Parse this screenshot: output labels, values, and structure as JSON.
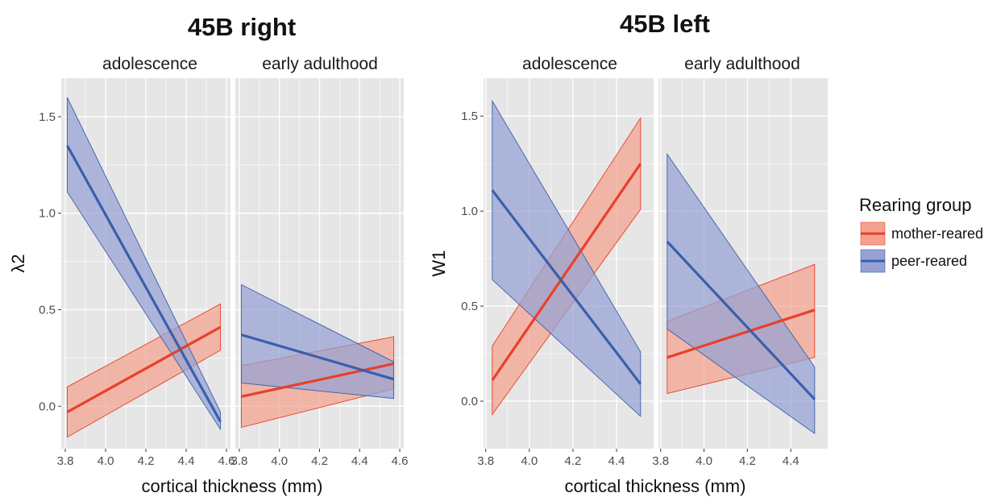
{
  "legend": {
    "title": "Rearing group",
    "items": [
      {
        "label": "mother-reared",
        "line": "#e8402c",
        "fill": "#f4a28e"
      },
      {
        "label": "peer-reared",
        "line": "#3a5fab",
        "fill": "#96a2d4"
      }
    ]
  },
  "colors": {
    "panel_bg": "#e6e6e6",
    "grid": "#ffffff",
    "mother_line": "#e8402c",
    "mother_fill": "#f4a28e",
    "peer_line": "#3a5fab",
    "peer_fill": "#96a2d4"
  },
  "chart_data": [
    {
      "type": "line",
      "title": "45B right",
      "ylabel": "λ2",
      "xlabel": "cortical thickness (mm)",
      "ylim": [
        -0.22,
        1.7
      ],
      "yticks": [
        0.0,
        0.5,
        1.0,
        1.5
      ],
      "ytick_labels": [
        "0.0",
        "0.5",
        "1.0",
        "1.5"
      ],
      "xlim": [
        3.78,
        4.62
      ],
      "xticks": [
        3.8,
        4.0,
        4.2,
        4.4,
        4.6
      ],
      "xtick_labels": [
        "3.8",
        "4.0",
        "4.2",
        "4.4",
        "4.6"
      ],
      "facets": [
        {
          "label": "adolescence",
          "series": [
            {
              "name": "mother-reared",
              "x": [
                3.81,
                4.57
              ],
              "y": [
                -0.03,
                0.41
              ],
              "lower": [
                -0.16,
                0.29
              ],
              "upper": [
                0.1,
                0.53
              ]
            },
            {
              "name": "peer-reared",
              "x": [
                3.81,
                4.57
              ],
              "y": [
                1.35,
                -0.08
              ],
              "lower": [
                1.11,
                -0.12
              ],
              "upper": [
                1.6,
                -0.03
              ]
            }
          ]
        },
        {
          "label": "early adulthood",
          "series": [
            {
              "name": "mother-reared",
              "x": [
                3.81,
                4.57
              ],
              "y": [
                0.05,
                0.22
              ],
              "lower": [
                -0.11,
                0.09
              ],
              "upper": [
                0.21,
                0.36
              ]
            },
            {
              "name": "peer-reared",
              "x": [
                3.81,
                4.57
              ],
              "y": [
                0.37,
                0.14
              ],
              "lower": [
                0.12,
                0.04
              ],
              "upper": [
                0.63,
                0.23
              ]
            }
          ]
        }
      ]
    },
    {
      "type": "line",
      "title": "45B left",
      "ylabel": "W1",
      "xlabel": "cortical thickness (mm)",
      "ylim": [
        -0.25,
        1.7
      ],
      "yticks": [
        0.0,
        0.5,
        1.0,
        1.5
      ],
      "ytick_labels": [
        "0.0",
        "0.5",
        "1.0",
        "1.5"
      ],
      "xlim": [
        3.79,
        4.57
      ],
      "xticks": [
        3.8,
        4.0,
        4.2,
        4.4
      ],
      "xtick_labels": [
        "3.8",
        "4.0",
        "4.2",
        "4.4"
      ],
      "facets": [
        {
          "label": "adolescence",
          "series": [
            {
              "name": "mother-reared",
              "x": [
                3.83,
                4.51
              ],
              "y": [
                0.11,
                1.25
              ],
              "lower": [
                -0.07,
                1.01
              ],
              "upper": [
                0.29,
                1.49
              ]
            },
            {
              "name": "peer-reared",
              "x": [
                3.83,
                4.51
              ],
              "y": [
                1.11,
                0.09
              ],
              "lower": [
                0.64,
                -0.08
              ],
              "upper": [
                1.58,
                0.26
              ]
            }
          ]
        },
        {
          "label": "early adulthood",
          "series": [
            {
              "name": "mother-reared",
              "x": [
                3.83,
                4.51
              ],
              "y": [
                0.23,
                0.48
              ],
              "lower": [
                0.04,
                0.23
              ],
              "upper": [
                0.42,
                0.72
              ]
            },
            {
              "name": "peer-reared",
              "x": [
                3.83,
                4.51
              ],
              "y": [
                0.84,
                0.01
              ],
              "lower": [
                0.38,
                -0.17
              ],
              "upper": [
                1.3,
                0.18
              ]
            }
          ]
        }
      ]
    }
  ]
}
